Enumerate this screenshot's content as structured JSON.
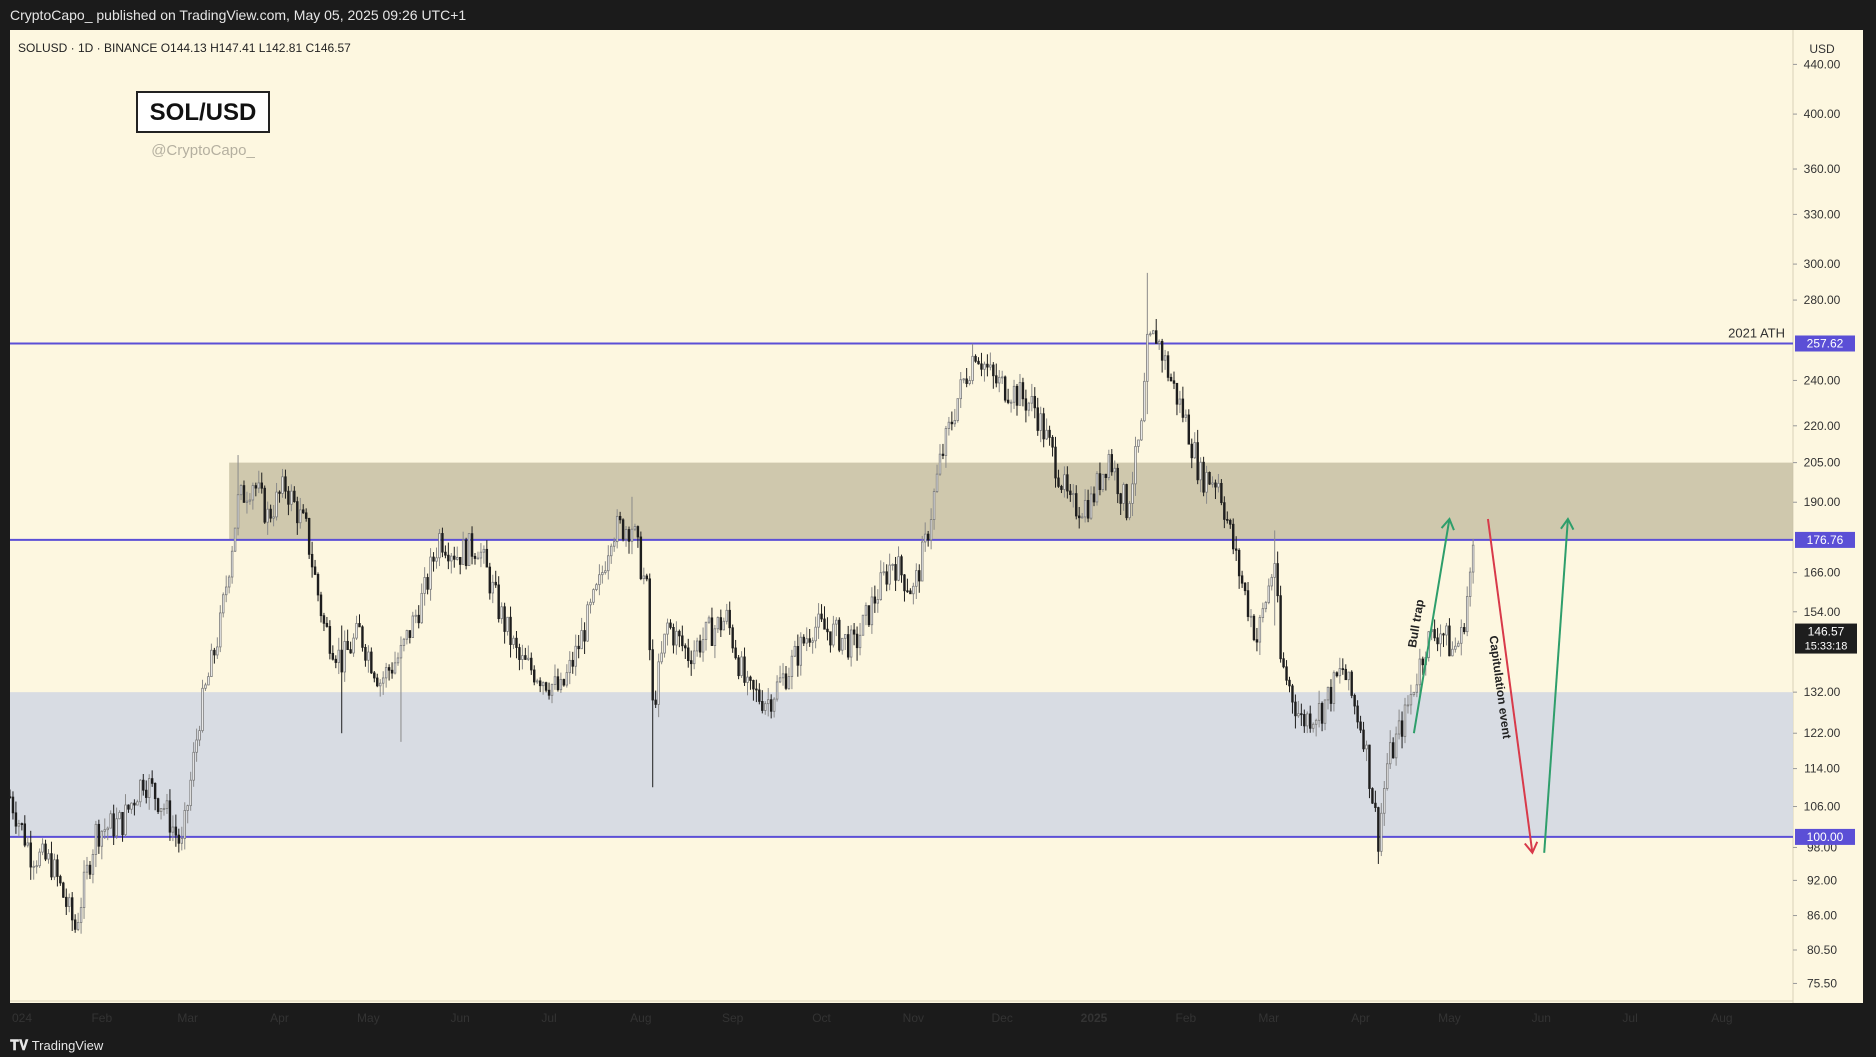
{
  "header": {
    "attribution": "CryptoCapo_ published on TradingView.com, May 05, 2025 09:26 UTC+1"
  },
  "footer": {
    "brand": "TradingView"
  },
  "symbol_bar": {
    "text": "SOLUSD · 1D · BINANCE   O144.13  H147.41  L142.81  C146.57"
  },
  "watermark": {
    "pair": "SOL/USD",
    "handle": "@CryptoCapo_"
  },
  "colors": {
    "background": "#fdf7e0",
    "candles": "#1e1e1e",
    "level_line": "#5b4fd6",
    "resistance_zone": "#c7bfa3",
    "support_zone": "#d4d8e3",
    "arrow_up": "#2e9e6b",
    "arrow_down": "#d83a4a",
    "last_price_tag": "#1e1e1e"
  },
  "chart_data": {
    "type": "candlestick",
    "symbol": "SOLUSD",
    "exchange": "BINANCE",
    "timeframe": "1D",
    "currency": "USD",
    "ohlc_last": {
      "open": 144.13,
      "high": 147.41,
      "low": 142.81,
      "close": 146.57
    },
    "y_scale": "log",
    "ylim": [
      73,
      470
    ],
    "y_ticks": [
      "440.00",
      "400.00",
      "360.00",
      "330.00",
      "300.00",
      "280.00",
      "240.00",
      "220.00",
      "205.00",
      "190.00",
      "166.00",
      "154.00",
      "132.00",
      "122.00",
      "114.00",
      "106.00",
      "98.00",
      "92.00",
      "86.00",
      "80.50",
      "75.50"
    ],
    "x_ticks": [
      {
        "label": "024",
        "date": "2024-01-01"
      },
      {
        "label": "Feb",
        "date": "2024-02-01"
      },
      {
        "label": "Mar",
        "date": "2024-03-01"
      },
      {
        "label": "Apr",
        "date": "2024-04-01"
      },
      {
        "label": "May",
        "date": "2024-05-01"
      },
      {
        "label": "Jun",
        "date": "2024-06-01"
      },
      {
        "label": "Jul",
        "date": "2024-07-01"
      },
      {
        "label": "Aug",
        "date": "2024-08-01"
      },
      {
        "label": "Sep",
        "date": "2024-09-01"
      },
      {
        "label": "Oct",
        "date": "2024-10-01"
      },
      {
        "label": "Nov",
        "date": "2024-11-01"
      },
      {
        "label": "Dec",
        "date": "2024-12-01"
      },
      {
        "label": "2025",
        "date": "2025-01-01"
      },
      {
        "label": "Feb",
        "date": "2025-02-01"
      },
      {
        "label": "Mar",
        "date": "2025-03-01"
      },
      {
        "label": "Apr",
        "date": "2025-04-01"
      },
      {
        "label": "May",
        "date": "2025-05-01"
      },
      {
        "label": "Jun",
        "date": "2025-06-01"
      },
      {
        "label": "Jul",
        "date": "2025-07-01"
      },
      {
        "label": "Aug",
        "date": "2025-08-01"
      }
    ],
    "price_path": [
      [
        "2024-01-01",
        108
      ],
      [
        "2024-01-08",
        97
      ],
      [
        "2024-01-15",
        95
      ],
      [
        "2024-01-23",
        84
      ],
      [
        "2024-01-30",
        101
      ],
      [
        "2024-02-08",
        103
      ],
      [
        "2024-02-15",
        112
      ],
      [
        "2024-02-22",
        106
      ],
      [
        "2024-02-28",
        98
      ],
      [
        "2024-03-05",
        126
      ],
      [
        "2024-03-12",
        150
      ],
      [
        "2024-03-18",
        190
      ],
      [
        "2024-03-23",
        198
      ],
      [
        "2024-03-28",
        185
      ],
      [
        "2024-04-03",
        196
      ],
      [
        "2024-04-10",
        180
      ],
      [
        "2024-04-16",
        150
      ],
      [
        "2024-04-22",
        140
      ],
      [
        "2024-04-28",
        148
      ],
      [
        "2024-05-05",
        135
      ],
      [
        "2024-05-12",
        142
      ],
      [
        "2024-05-20",
        160
      ],
      [
        "2024-05-25",
        178
      ],
      [
        "2024-05-31",
        172
      ],
      [
        "2024-06-07",
        175
      ],
      [
        "2024-06-14",
        155
      ],
      [
        "2024-06-21",
        140
      ],
      [
        "2024-06-27",
        137
      ],
      [
        "2024-07-05",
        132
      ],
      [
        "2024-07-10",
        142
      ],
      [
        "2024-07-18",
        162
      ],
      [
        "2024-07-22",
        180
      ],
      [
        "2024-07-29",
        182
      ],
      [
        "2024-08-03",
        160
      ],
      [
        "2024-08-05",
        128
      ],
      [
        "2024-08-10",
        150
      ],
      [
        "2024-08-17",
        142
      ],
      [
        "2024-08-24",
        148
      ],
      [
        "2024-08-30",
        152
      ],
      [
        "2024-09-06",
        132
      ],
      [
        "2024-09-13",
        130
      ],
      [
        "2024-09-20",
        138
      ],
      [
        "2024-09-28",
        150
      ],
      [
        "2024-10-05",
        148
      ],
      [
        "2024-10-12",
        144
      ],
      [
        "2024-10-19",
        158
      ],
      [
        "2024-10-25",
        170
      ],
      [
        "2024-11-01",
        160
      ],
      [
        "2024-11-05",
        175
      ],
      [
        "2024-11-10",
        205
      ],
      [
        "2024-11-16",
        232
      ],
      [
        "2024-11-22",
        255
      ],
      [
        "2024-11-28",
        240
      ],
      [
        "2024-12-05",
        235
      ],
      [
        "2024-12-12",
        228
      ],
      [
        "2024-12-19",
        205
      ],
      [
        "2024-12-24",
        188
      ],
      [
        "2024-12-31",
        190
      ],
      [
        "2025-01-06",
        208
      ],
      [
        "2025-01-12",
        188
      ],
      [
        "2025-01-17",
        218
      ],
      [
        "2025-01-19",
        255
      ],
      [
        "2025-01-22",
        262
      ],
      [
        "2025-01-27",
        240
      ],
      [
        "2025-02-01",
        222
      ],
      [
        "2025-02-06",
        200
      ],
      [
        "2025-02-12",
        198
      ],
      [
        "2025-02-18",
        170
      ],
      [
        "2025-02-25",
        146
      ],
      [
        "2025-03-03",
        170
      ],
      [
        "2025-03-05",
        140
      ],
      [
        "2025-03-12",
        125
      ],
      [
        "2025-03-19",
        128
      ],
      [
        "2025-03-26",
        138
      ],
      [
        "2025-04-02",
        122
      ],
      [
        "2025-04-07",
        100
      ],
      [
        "2025-04-10",
        115
      ],
      [
        "2025-04-16",
        126
      ],
      [
        "2025-04-23",
        145
      ],
      [
        "2025-04-28",
        149
      ],
      [
        "2025-05-02",
        143
      ],
      [
        "2025-05-05",
        146.57
      ],
      [
        "2025-05-09",
        172
      ],
      [
        "2025-05-10",
        178
      ]
    ],
    "price_spikes": [
      {
        "date": "2024-03-18",
        "high": 208,
        "low": 186
      },
      {
        "date": "2024-04-22",
        "high": 150,
        "low": 122
      },
      {
        "date": "2024-05-12",
        "high": 146,
        "low": 120
      },
      {
        "date": "2024-07-29",
        "high": 192,
        "low": 172
      },
      {
        "date": "2024-08-05",
        "high": 130,
        "low": 110
      },
      {
        "date": "2025-01-19",
        "high": 295,
        "low": 225
      },
      {
        "date": "2025-03-03",
        "high": 180,
        "low": 150
      },
      {
        "date": "2025-04-07",
        "high": 104,
        "low": 95
      }
    ],
    "horizontal_levels": [
      {
        "price": 257.62,
        "label": "257.62",
        "annotation": "2021 ATH"
      },
      {
        "price": 176.76,
        "label": "176.76",
        "annotation": ""
      },
      {
        "price": 100.0,
        "label": "100.00",
        "annotation": ""
      }
    ],
    "zones": [
      {
        "from": 176.76,
        "to": 205.0,
        "start_date": "2024-03-15",
        "kind": "resistance"
      },
      {
        "from": 100.0,
        "to": 132.0,
        "start_date": "2024-01-01",
        "kind": "support"
      }
    ],
    "last_price": {
      "price": 146.57,
      "label": "146.57",
      "countdown": "15:33:18"
    },
    "annotations": [
      {
        "text": "Bull trap",
        "direction": "up",
        "from": {
          "date": "2025-04-19",
          "price": 122
        },
        "to": {
          "date": "2025-05-01",
          "price": 184
        }
      },
      {
        "text": "Capitulation event",
        "direction": "down",
        "from": {
          "date": "2025-05-14",
          "price": 184
        },
        "to": {
          "date": "2025-05-29",
          "price": 97
        }
      },
      {
        "text": "",
        "direction": "up",
        "from": {
          "date": "2025-06-02",
          "price": 97
        },
        "to": {
          "date": "2025-06-10",
          "price": 184
        }
      }
    ]
  }
}
